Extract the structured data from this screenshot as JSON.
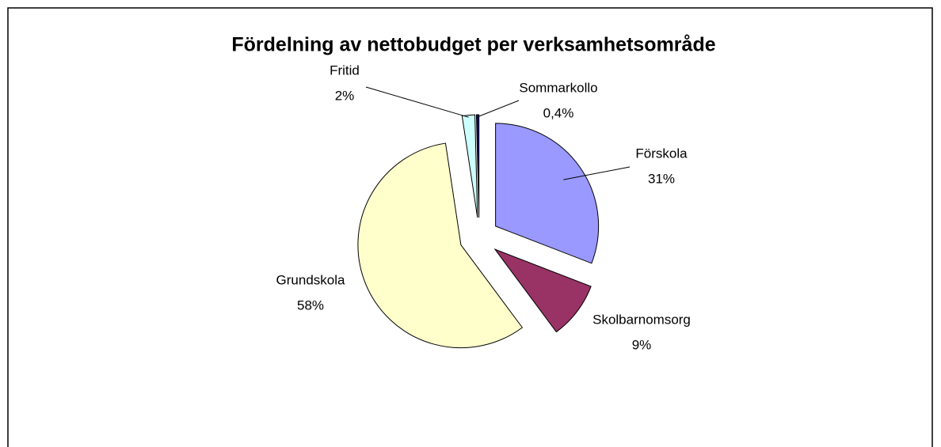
{
  "chart_data": {
    "type": "pie",
    "title": "Fördelning av nettobudget per verksamhetsområde",
    "categories": [
      "Förskola",
      "Skolbarnomsorg",
      "Grundskola",
      "Fritid",
      "Sommarkollo"
    ],
    "values": [
      31,
      9,
      58,
      2,
      0.4
    ],
    "value_labels": [
      "31%",
      "9%",
      "58%",
      "2%",
      "0,4%"
    ],
    "colors": [
      "#9999ff",
      "#993366",
      "#ffffcc",
      "#ccffff",
      "#000080"
    ]
  }
}
